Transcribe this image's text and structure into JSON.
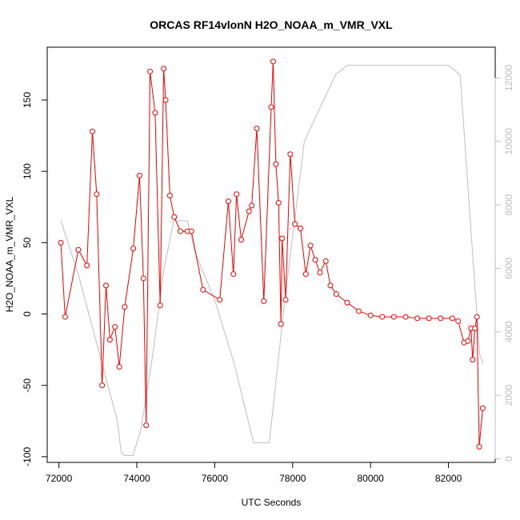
{
  "chart_data": {
    "type": "line",
    "title": "ORCAS RF14vlonN H2O_NOAA_m_VMR_VXL",
    "xlabel": "UTC Seconds",
    "ylabel": "H2O_NOAA_m_VMR_VXL",
    "x_range": [
      71700,
      83200
    ],
    "y_range": [
      -104,
      187
    ],
    "y2_range": [
      -115,
      12970
    ],
    "x_ticks": [
      72000,
      74000,
      76000,
      78000,
      80000,
      82000
    ],
    "y_ticks": [
      -100,
      -50,
      0,
      50,
      100,
      150
    ],
    "y2_ticks": [
      0,
      2000,
      4000,
      6000,
      8000,
      10000,
      12000
    ],
    "colors": {
      "primary": "#ff0000",
      "secondary": "#bebebe",
      "axis": "#000000",
      "secondary_ticks": "#bebebe"
    },
    "series": [
      {
        "axis": "left",
        "style": "line+points",
        "x": [
          72050,
          72160,
          72500,
          72720,
          72860,
          72970,
          73110,
          73210,
          73310,
          73440,
          73550,
          73690,
          73910,
          74070,
          74170,
          74240,
          74340,
          74470,
          74600,
          74690,
          74740,
          74850,
          74960,
          75120,
          75300,
          75400,
          75700,
          76130,
          76350,
          76480,
          76560,
          76680,
          76880,
          76950,
          77080,
          77260,
          77450,
          77500,
          77570,
          77640,
          77700,
          77730,
          77820,
          77940,
          78060,
          78200,
          78340,
          78460,
          78580,
          78700,
          78850,
          78970,
          79120,
          79400,
          79700,
          80000,
          80300,
          80600,
          80900,
          81200,
          81500,
          81800,
          82100,
          82250,
          82400,
          82500,
          82580,
          82620,
          82680,
          82730,
          82790,
          82880
        ],
        "y": [
          50,
          -2,
          45,
          34,
          128,
          84,
          -50,
          20,
          -18,
          -9,
          -37,
          5,
          46,
          97,
          25,
          -78,
          170,
          141,
          6,
          172,
          150,
          83,
          68,
          58,
          58,
          58,
          17,
          10,
          79,
          28,
          84,
          52,
          72,
          76,
          130,
          9,
          145,
          177,
          105,
          78,
          -7,
          53,
          10,
          112,
          63,
          60,
          28,
          48,
          38,
          29,
          37,
          20,
          14,
          8,
          2,
          -1,
          -2,
          -2,
          -2,
          -3,
          -3,
          -3,
          -3,
          -5,
          -20,
          -19,
          -10,
          -32,
          -10,
          -2,
          -93,
          -66
        ]
      },
      {
        "axis": "right",
        "style": "line",
        "x": [
          72050,
          72500,
          73000,
          73500,
          73600,
          73700,
          73900,
          74100,
          74400,
          74700,
          74950,
          75100,
          75300,
          75500,
          76000,
          76500,
          77000,
          77200,
          77400,
          77800,
          78300,
          79100,
          79400,
          80000,
          81000,
          82000,
          82300,
          82800,
          82890
        ],
        "y": [
          7500,
          5800,
          3500,
          1200,
          200,
          100,
          100,
          900,
          3200,
          6000,
          7500,
          7500,
          7500,
          6500,
          5000,
          3000,
          500,
          500,
          500,
          5000,
          10000,
          12100,
          12400,
          12400,
          12400,
          12400,
          12100,
          3300,
          3000
        ]
      }
    ]
  }
}
